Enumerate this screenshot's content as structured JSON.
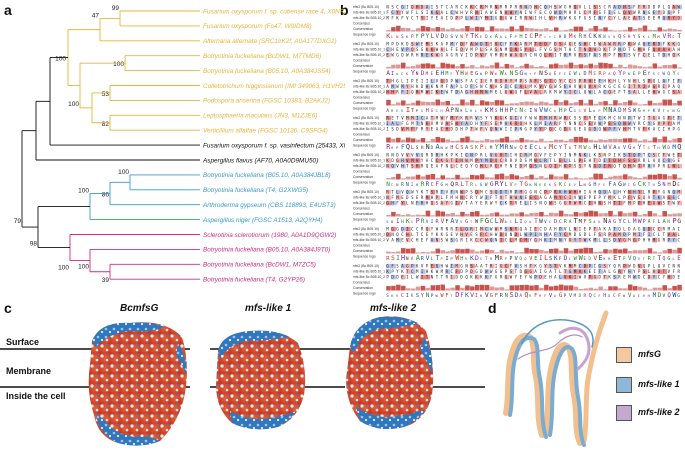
{
  "panels": {
    "a": "a",
    "b": "b",
    "c": "c",
    "d": "d"
  },
  "colors": {
    "orange": "#e8b43a",
    "blue": "#3a9ad0",
    "magenta": "#cf2d7c",
    "black": "#111111"
  },
  "tree": {
    "leaves": [
      {
        "label": "Fusarium oxysporum f. sp. cubense race 4, X0NRR7)",
        "color": "orange"
      },
      {
        "label": "Fusarium oxysporum (Fo47, W9IDM8)",
        "color": "orange"
      },
      {
        "label": "Alternaria alternata (SRC1lrK2f, A0A177DXG1)",
        "color": "orange"
      },
      {
        "label": "Botryotinia fuckeliana (BcDW1, M7TMD6)",
        "color": "orange"
      },
      {
        "label": "Botryotinia fuckeliana (B05.10, A0A384JS54)",
        "color": "orange"
      },
      {
        "label": "Colletotrichum higginsianum (IMI 349063, H1VH25)",
        "color": "orange"
      },
      {
        "label": "Podospora anserina (FGSC 10383, B2AKJ2)",
        "color": "orange"
      },
      {
        "label": "Leptosphaeria maculans (JN3, M1ZJE6)",
        "color": "orange"
      },
      {
        "label": "Verticillium alfalfae (FGSC 10136, C9SFG4)",
        "color": "orange"
      },
      {
        "label": "Fusarium oxysporum f. sp. vasinfectum (25433, X0MNH6)",
        "color": "black"
      },
      {
        "label": "Aspergillus flavus (AF70, A0A0D9MU50)",
        "color": "black"
      },
      {
        "label": "Botryotinia fuckeliana (B05.10, A0A384JBL8)",
        "color": "blue"
      },
      {
        "label": "Botryotinia fuckeliana (T4, G2XWG5)",
        "color": "blue"
      },
      {
        "label": "Arthroderma gypseum (CBS 118893, E4UST3)",
        "color": "blue"
      },
      {
        "label": "Aspergillus niger (FGSC A1513, A2QYH4)",
        "color": "blue"
      },
      {
        "label": "Sclerotinia sclerotiorum (1980, A0A1D9QGW2)",
        "color": "magenta"
      },
      {
        "label": "Botryotinia fuckeliana (B05.10, A0A384J9T0)",
        "color": "magenta"
      },
      {
        "label": "Botryotinia fuckeliana (BcDW1, M7ZC5)",
        "color": "magenta"
      },
      {
        "label": "Botryotinia fuckeliana (T4, G2YP26)",
        "color": "magenta"
      }
    ],
    "support": [
      "99",
      "47",
      "100",
      "100",
      "53",
      "100",
      "82",
      "100",
      "100",
      "86",
      "79",
      "98",
      "100",
      "100",
      "39"
    ]
  },
  "alignment": {
    "row_labels": [
      "nfsG (Bc B05.10)",
      "mfs-like Bc B05.10_1",
      "mfs-like Bc B05.10_2",
      "Consensus",
      "Conservation",
      "Sequence logo"
    ],
    "blocks": 8
  },
  "structures": {
    "proteins": [
      "BcmfsG",
      "mfs-like 1",
      "mfs-like 2"
    ],
    "regions": [
      "Surface",
      "Membrane",
      "Inside the cell"
    ]
  },
  "legend": [
    {
      "label": "mfsG",
      "color": "#f5c8a0"
    },
    {
      "label": "mfs-like 1",
      "color": "#8fb8d8"
    },
    {
      "label": "mfs-like 2",
      "color": "#c4a8d0"
    }
  ]
}
